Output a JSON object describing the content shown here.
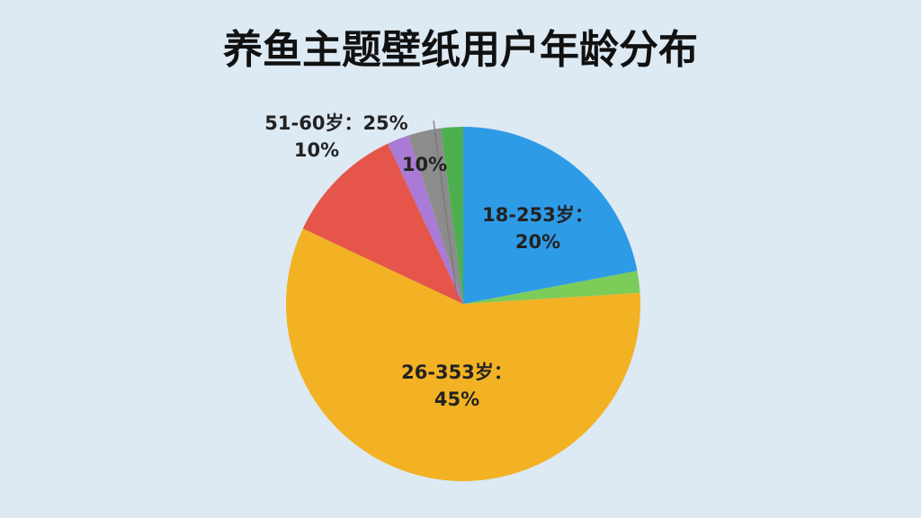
{
  "chart_data": {
    "type": "pie",
    "title": "养鱼主题壁纸用户年龄分布",
    "categories": [
      null,
      null,
      null,
      null,
      null,
      null,
      null
    ],
    "values": [
      22,
      2,
      58,
      11,
      2,
      3,
      2
    ],
    "colors": [
      "#2e9be6",
      "#7ccc5a",
      "#f2b223",
      "#e5554a",
      "#a97ad6",
      "#8c8c8c",
      "#4cb050"
    ],
    "annotations": [
      {
        "lines": [
          "18-253岁：",
          "20%"
        ]
      },
      {
        "lines": [
          "26-353岁：",
          "45%"
        ]
      },
      {
        "lines": [
          "51-60岁：25%",
          "10%"
        ]
      },
      {
        "lines": [
          "10%"
        ]
      }
    ]
  }
}
